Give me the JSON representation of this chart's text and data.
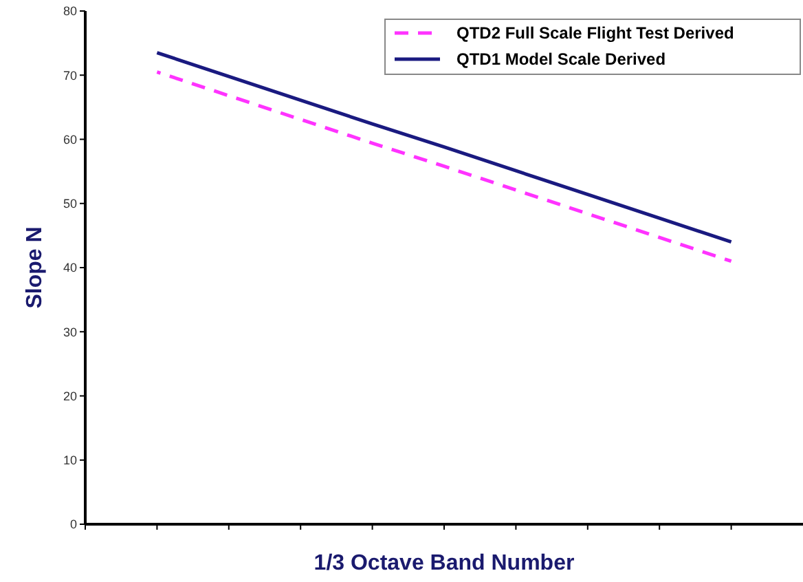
{
  "chart_data": {
    "type": "line",
    "xlabel": "1/3 Octave Band Number",
    "ylabel": "Slope N",
    "categories": [
      null,
      null,
      null,
      null,
      null,
      null,
      null,
      null,
      null
    ],
    "series": [
      {
        "name": "QTD2 Full Scale Flight Test Derived",
        "color": "#ff33ff",
        "line_style": "dashed",
        "values": [
          70.5,
          66.8,
          63.1,
          59.4,
          55.8,
          52.1,
          48.4,
          44.7,
          41
        ]
      },
      {
        "name": "QTD1 Model Scale Derived",
        "color": "#1a1a80",
        "line_style": "solid",
        "values": [
          73.5,
          69.8,
          66.1,
          62.4,
          58.8,
          55.1,
          51.4,
          47.7,
          44
        ]
      }
    ],
    "ylim": [
      0,
      80
    ],
    "yticks": [
      0,
      10,
      20,
      30,
      40,
      50,
      60,
      70,
      80
    ],
    "grid": false,
    "legend": "top right",
    "marker": "none"
  }
}
